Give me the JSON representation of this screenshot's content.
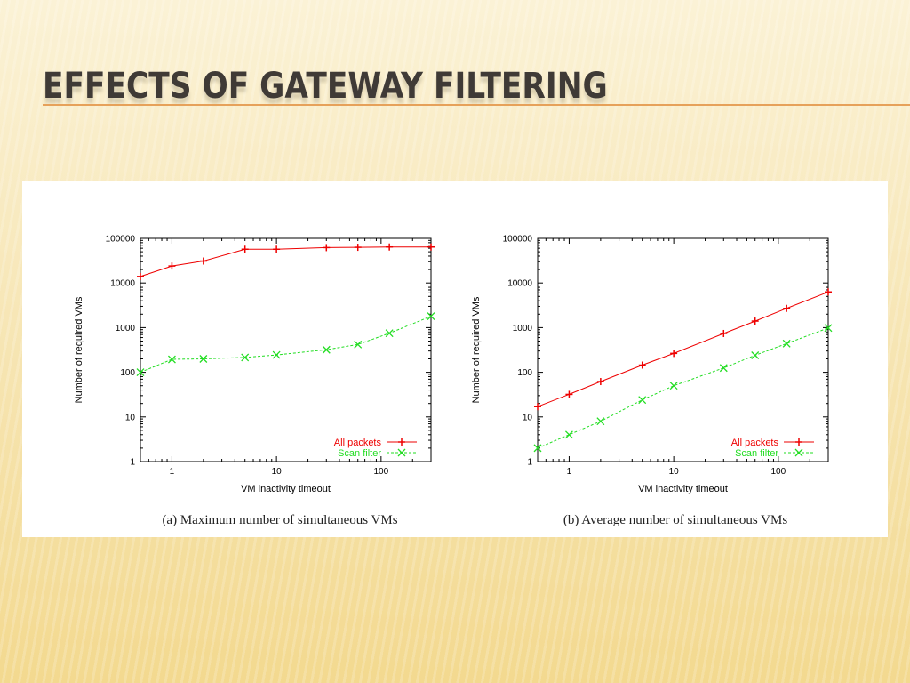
{
  "slide": {
    "title": "EFFECTS OF GATEWAY FILTERING"
  },
  "colors": {
    "title": "#3f3a36",
    "accent_rule": "#e6a15a",
    "all_packets": "#ee0000",
    "scan_filter": "#22dd22"
  },
  "chart_data": [
    {
      "type": "line",
      "caption": "(a) Maximum number of simultaneous VMs",
      "xlabel": "VM inactivity timeout",
      "ylabel": "Number of required VMs",
      "xscale": "log",
      "yscale": "log",
      "xlim": [
        0.5,
        300
      ],
      "ylim": [
        1,
        100000
      ],
      "xticks": [
        "1",
        "10",
        "100"
      ],
      "yticks": [
        "1",
        "10",
        "100",
        "1000",
        "10000",
        "100000"
      ],
      "legend": "bottom-right",
      "series": [
        {
          "name": "All packets",
          "marker": "+",
          "x": [
            0.5,
            1,
            2,
            5,
            10,
            30,
            60,
            120,
            300
          ],
          "y": [
            14000,
            24000,
            31000,
            57000,
            57000,
            62000,
            63000,
            64000,
            64000
          ]
        },
        {
          "name": "Scan filter",
          "marker": "x",
          "x": [
            0.5,
            1,
            2,
            5,
            10,
            30,
            60,
            120,
            300
          ],
          "y": [
            100,
            195,
            200,
            215,
            245,
            320,
            420,
            750,
            1800
          ]
        }
      ]
    },
    {
      "type": "line",
      "caption": "(b) Average number of simultaneous VMs",
      "xlabel": "VM inactivity timeout",
      "ylabel": "Number of required VMs",
      "xscale": "log",
      "yscale": "log",
      "xlim": [
        0.5,
        300
      ],
      "ylim": [
        1,
        100000
      ],
      "xticks": [
        "1",
        "10",
        "100"
      ],
      "yticks": [
        "1",
        "10",
        "100",
        "1000",
        "10000",
        "100000"
      ],
      "legend": "bottom-right",
      "series": [
        {
          "name": "All packets",
          "marker": "+",
          "x": [
            0.5,
            1,
            2,
            5,
            10,
            30,
            60,
            120,
            300
          ],
          "y": [
            17,
            32,
            62,
            145,
            265,
            740,
            1400,
            2700,
            6300
          ]
        },
        {
          "name": "Scan filter",
          "marker": "x",
          "x": [
            0.5,
            1,
            2,
            5,
            10,
            30,
            60,
            120,
            300
          ],
          "y": [
            2,
            4,
            8,
            24,
            50,
            125,
            240,
            440,
            980
          ]
        }
      ]
    }
  ]
}
